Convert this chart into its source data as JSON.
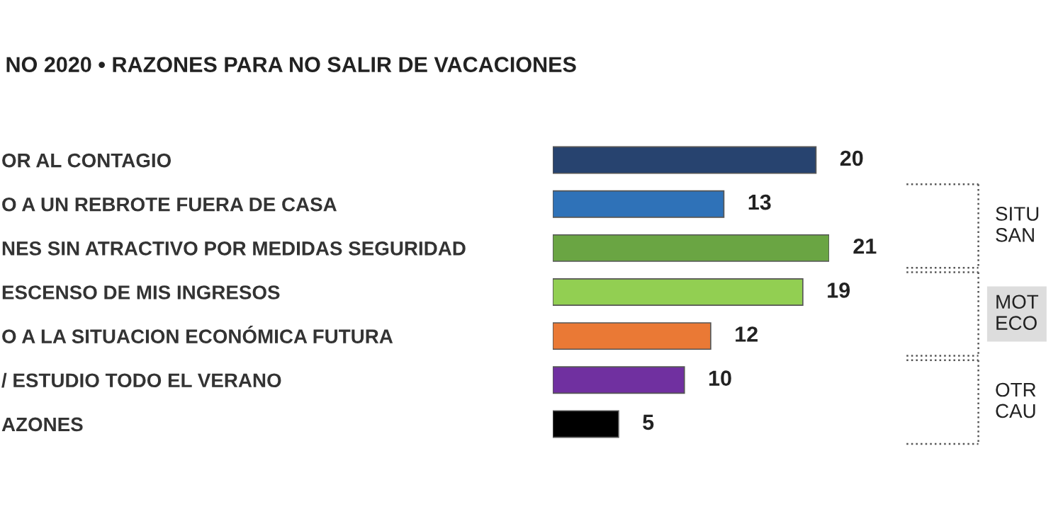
{
  "chart_data": {
    "type": "bar",
    "orientation": "horizontal",
    "title": "NO 2020 • RAZONES PARA NO SALIR DE VACACIONES",
    "categories": [
      "OR AL CONTAGIO",
      "O A UN REBROTE FUERA DE CASA",
      "NES SIN ATRACTIVO POR MEDIDAS SEGURIDAD",
      "ESCENSO DE MIS INGRESOS",
      "O A LA SITUACION ECONÓMICA FUTURA",
      "/ ESTUDIO TODO EL VERANO",
      "AZONES"
    ],
    "values": [
      20,
      13,
      21,
      19,
      12,
      10,
      5
    ],
    "colors": [
      "#27436f",
      "#2f72b8",
      "#6aa543",
      "#92cf52",
      "#ea7935",
      "#7030a0",
      "#000000"
    ],
    "data_labels": true,
    "annotations": [
      "SITU\nSAN",
      "MOT\nECO",
      "OTR\nCAU"
    ]
  }
}
